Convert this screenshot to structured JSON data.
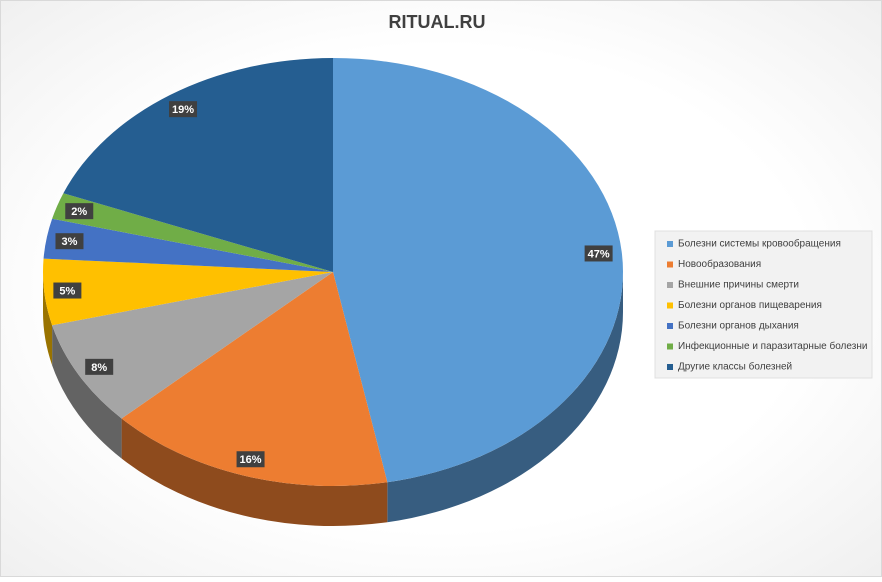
{
  "chart_data": {
    "type": "pie",
    "title": "RITUAL.RU",
    "categories": [
      "Болезни системы кровообращения",
      "Новообразования",
      "Внешние причины смерти",
      "Болезни органов пищеварения",
      "Болезни органов дыхания",
      "Инфекционные и паразитарные болезни",
      "Другие классы болезней"
    ],
    "values": [
      47,
      16,
      8,
      5,
      3,
      2,
      19
    ],
    "value_labels": [
      "47%",
      "16%",
      "8%",
      "5%",
      "3%",
      "2%",
      "19%"
    ],
    "colors": [
      "#5b9bd5",
      "#ed7d31",
      "#a5a5a5",
      "#ffc000",
      "#4472c4",
      "#70ad47",
      "#255e91"
    ],
    "legend": "right"
  }
}
